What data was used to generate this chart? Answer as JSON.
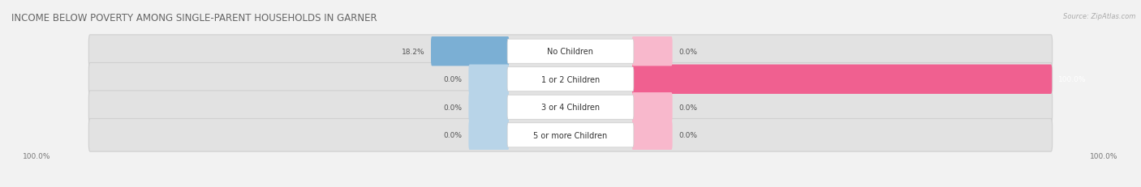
{
  "title": "INCOME BELOW POVERTY AMONG SINGLE-PARENT HOUSEHOLDS IN GARNER",
  "source": "Source: ZipAtlas.com",
  "categories": [
    "No Children",
    "1 or 2 Children",
    "3 or 4 Children",
    "5 or more Children"
  ],
  "father_values": [
    18.2,
    0.0,
    0.0,
    0.0
  ],
  "mother_values": [
    0.0,
    100.0,
    0.0,
    0.0
  ],
  "father_color": "#7bafd4",
  "mother_color": "#f06090",
  "father_color_light": "#b8d4e8",
  "mother_color_light": "#f8b8cc",
  "bg_color": "#f2f2f2",
  "bar_bg_color": "#e2e2e2",
  "bar_bg_outline": "#d0d0d0",
  "max_val": 100.0,
  "title_fontsize": 8.5,
  "label_fontsize": 7.0,
  "value_fontsize": 6.5,
  "legend_fontsize": 7.0,
  "source_fontsize": 6.0,
  "axis_label_left": "100.0%",
  "axis_label_right": "100.0%"
}
